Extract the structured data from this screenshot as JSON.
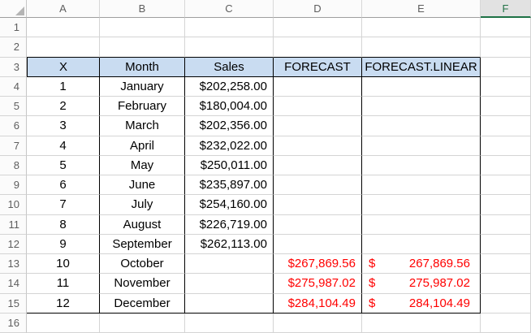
{
  "sheet": {
    "column_headers": [
      {
        "label": "A",
        "selected": false
      },
      {
        "label": "B",
        "selected": false
      },
      {
        "label": "C",
        "selected": false
      },
      {
        "label": "D",
        "selected": false
      },
      {
        "label": "E",
        "selected": false
      },
      {
        "label": "F",
        "selected": true
      }
    ],
    "row_headers": [
      "1",
      "2",
      "3",
      "4",
      "5",
      "6",
      "7",
      "8",
      "9",
      "10",
      "11",
      "12",
      "13",
      "14",
      "15",
      "16"
    ]
  },
  "table": {
    "headers": [
      "X",
      "Month",
      "Sales",
      "FORECAST",
      "FORECAST.LINEAR"
    ],
    "rows": [
      {
        "x": "1",
        "month": "January",
        "sales": "$202,258.00",
        "forecast": "",
        "fl_sym": "",
        "fl_val": ""
      },
      {
        "x": "2",
        "month": "February",
        "sales": "$180,004.00",
        "forecast": "",
        "fl_sym": "",
        "fl_val": ""
      },
      {
        "x": "3",
        "month": "March",
        "sales": "$202,356.00",
        "forecast": "",
        "fl_sym": "",
        "fl_val": ""
      },
      {
        "x": "4",
        "month": "April",
        "sales": "$232,022.00",
        "forecast": "",
        "fl_sym": "",
        "fl_val": ""
      },
      {
        "x": "5",
        "month": "May",
        "sales": "$250,011.00",
        "forecast": "",
        "fl_sym": "",
        "fl_val": ""
      },
      {
        "x": "6",
        "month": "June",
        "sales": "$235,897.00",
        "forecast": "",
        "fl_sym": "",
        "fl_val": ""
      },
      {
        "x": "7",
        "month": "July",
        "sales": "$254,160.00",
        "forecast": "",
        "fl_sym": "",
        "fl_val": ""
      },
      {
        "x": "8",
        "month": "August",
        "sales": "$226,719.00",
        "forecast": "",
        "fl_sym": "",
        "fl_val": ""
      },
      {
        "x": "9",
        "month": "September",
        "sales": "$262,113.00",
        "forecast": "",
        "fl_sym": "",
        "fl_val": ""
      },
      {
        "x": "10",
        "month": "October",
        "sales": "",
        "forecast": "$267,869.56",
        "fl_sym": "$",
        "fl_val": "267,869.56"
      },
      {
        "x": "11",
        "month": "November",
        "sales": "",
        "forecast": "$275,987.02",
        "fl_sym": "$",
        "fl_val": "275,987.02"
      },
      {
        "x": "12",
        "month": "December",
        "sales": "",
        "forecast": "$284,104.49",
        "fl_sym": "$",
        "fl_val": "284,104.49"
      }
    ]
  },
  "colors": {
    "table_header_fill": "#C9DCF1",
    "forecast_text": "#FF0000",
    "selected_column_text": "#217346",
    "selected_column_underline": "#1E7145",
    "grid_line": "#D4D4D4",
    "table_border": "#000000"
  }
}
